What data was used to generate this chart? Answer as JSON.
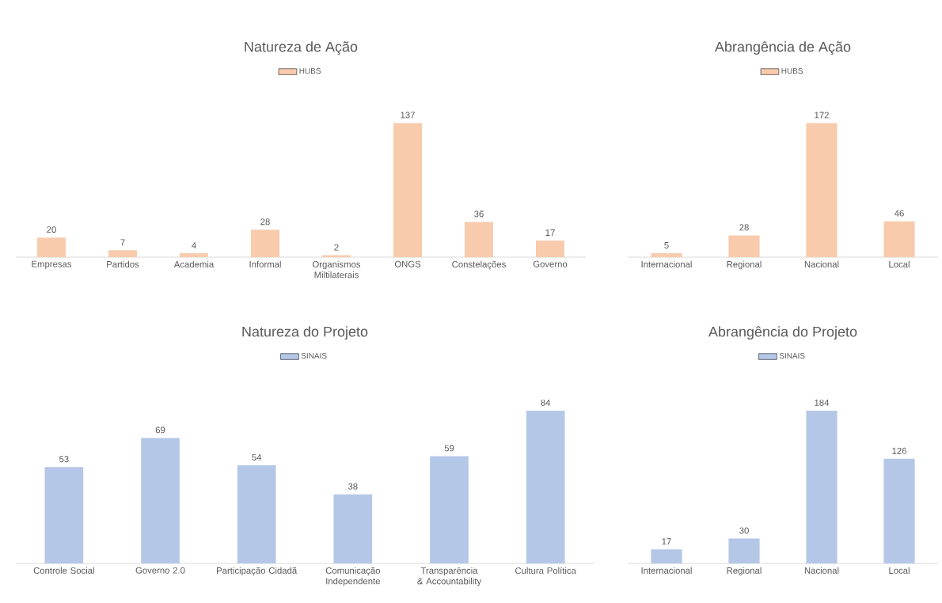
{
  "chart_data": [
    {
      "type": "bar",
      "title": "Natureza de Ação",
      "categories": [
        "Empresas",
        "Partidos",
        "Academia",
        "Informal",
        "Organismos Miltilaterais",
        "ONGS",
        "Constelações",
        "Governo"
      ],
      "series": [
        {
          "name": "HUBS",
          "color": "#f8cbad",
          "values": [
            20,
            7,
            4,
            28,
            2,
            137,
            36,
            17
          ]
        }
      ],
      "legend": "top",
      "data_labels": true
    },
    {
      "type": "bar",
      "title": "Abrangência de Ação",
      "categories": [
        "Internacional",
        "Regional",
        "Nacional",
        "Local"
      ],
      "series": [
        {
          "name": "HUBS",
          "color": "#f8cbad",
          "values": [
            5,
            28,
            172,
            46
          ]
        }
      ],
      "legend": "top",
      "data_labels": true
    },
    {
      "type": "bar",
      "title": "Natureza do Projeto",
      "categories": [
        "Controle Social",
        "Governo 2.0",
        "Participação Cidadã",
        "Comunicação Independente",
        "Transparência & Accountability",
        "Cultura Política"
      ],
      "series": [
        {
          "name": "SINAIS",
          "color": "#b4c7e7",
          "values": [
            53,
            69,
            54,
            38,
            59,
            84
          ]
        }
      ],
      "legend": "top",
      "data_labels": true
    },
    {
      "type": "bar",
      "title": "Abrangência do Projeto",
      "categories": [
        "Internacional",
        "Regional",
        "Nacional",
        "Local"
      ],
      "series": [
        {
          "name": "SINAIS",
          "color": "#b4c7e7",
          "values": [
            17,
            30,
            184,
            126
          ]
        }
      ],
      "legend": "top",
      "data_labels": true
    }
  ]
}
